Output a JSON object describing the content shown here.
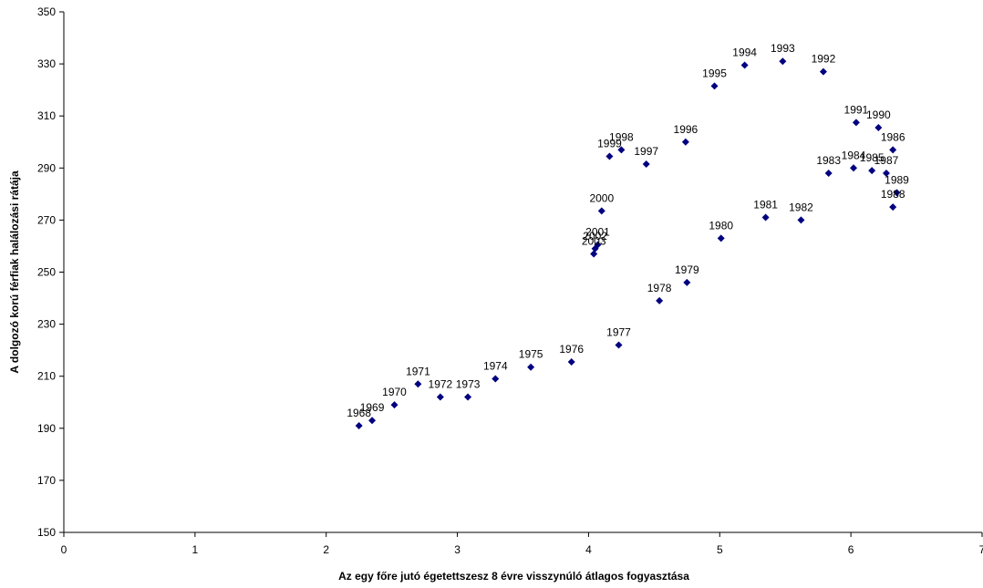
{
  "chart_data": {
    "type": "scatter",
    "xlabel": "Az egy főre jutó égetettszesz 8 évre visszynúló átlagos fogyasztása",
    "ylabel": "A dolgozó korú férfiak halálozási rátája",
    "xlim": [
      0,
      7
    ],
    "ylim": [
      150,
      350
    ],
    "x_ticks": [
      "0",
      "1",
      "2",
      "3",
      "4",
      "5",
      "6",
      "7"
    ],
    "y_ticks": [
      "150",
      "170",
      "190",
      "210",
      "230",
      "250",
      "270",
      "290",
      "310",
      "330",
      "350"
    ],
    "grid": false,
    "legend": "none",
    "marker_color": "#000080",
    "points": [
      {
        "label": "1968",
        "x": 2.25,
        "y": 191
      },
      {
        "label": "1969",
        "x": 2.35,
        "y": 193
      },
      {
        "label": "1970",
        "x": 2.52,
        "y": 199
      },
      {
        "label": "1971",
        "x": 2.7,
        "y": 207
      },
      {
        "label": "1972",
        "x": 2.87,
        "y": 202
      },
      {
        "label": "1973",
        "x": 3.08,
        "y": 202
      },
      {
        "label": "1974",
        "x": 3.29,
        "y": 209
      },
      {
        "label": "1975",
        "x": 3.56,
        "y": 213.5
      },
      {
        "label": "1976",
        "x": 3.87,
        "y": 215.5
      },
      {
        "label": "1977",
        "x": 4.23,
        "y": 222
      },
      {
        "label": "1978",
        "x": 4.54,
        "y": 239
      },
      {
        "label": "1979",
        "x": 4.75,
        "y": 246
      },
      {
        "label": "1980",
        "x": 5.01,
        "y": 263
      },
      {
        "label": "1981",
        "x": 5.35,
        "y": 271
      },
      {
        "label": "1982",
        "x": 5.62,
        "y": 270
      },
      {
        "label": "1983",
        "x": 5.83,
        "y": 288
      },
      {
        "label": "1984",
        "x": 6.02,
        "y": 290
      },
      {
        "label": "1985",
        "x": 6.16,
        "y": 289
      },
      {
        "label": "1986",
        "x": 6.32,
        "y": 297
      },
      {
        "label": "1987",
        "x": 6.27,
        "y": 288
      },
      {
        "label": "1988",
        "x": 6.32,
        "y": 275
      },
      {
        "label": "1989",
        "x": 6.35,
        "y": 280.5
      },
      {
        "label": "1990",
        "x": 6.21,
        "y": 305.5
      },
      {
        "label": "1991",
        "x": 6.04,
        "y": 307.5
      },
      {
        "label": "1992",
        "x": 5.79,
        "y": 327
      },
      {
        "label": "1993",
        "x": 5.48,
        "y": 331
      },
      {
        "label": "1994",
        "x": 5.19,
        "y": 329.5
      },
      {
        "label": "1995",
        "x": 4.96,
        "y": 321.5
      },
      {
        "label": "1996",
        "x": 4.74,
        "y": 300
      },
      {
        "label": "1997",
        "x": 4.44,
        "y": 291.5
      },
      {
        "label": "1998",
        "x": 4.25,
        "y": 297
      },
      {
        "label": "1999",
        "x": 4.16,
        "y": 294.5
      },
      {
        "label": "2000",
        "x": 4.1,
        "y": 273.5
      },
      {
        "label": "2001",
        "x": 4.07,
        "y": 260.5
      },
      {
        "label": "2002",
        "x": 4.05,
        "y": 259
      },
      {
        "label": "2003",
        "x": 4.04,
        "y": 257
      }
    ]
  }
}
